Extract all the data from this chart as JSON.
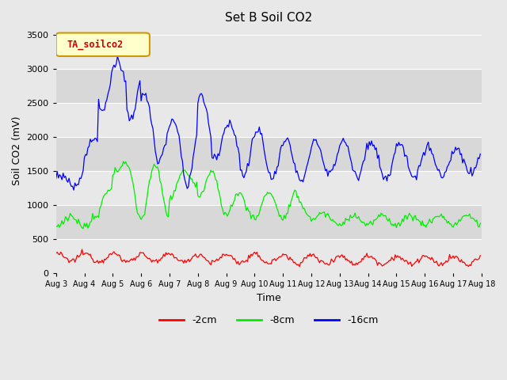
{
  "title": "Set B Soil CO2",
  "xlabel": "Time",
  "ylabel": "Soil CO2 (mV)",
  "ylim": [
    0,
    3600
  ],
  "yticks": [
    0,
    500,
    1000,
    1500,
    2000,
    2500,
    3000,
    3500
  ],
  "legend_label": "TA_soilco2",
  "series_labels": [
    "-2cm",
    "-8cm",
    "-16cm"
  ],
  "series_colors": [
    "#ff0000",
    "#00ee00",
    "#0000ff"
  ],
  "n_points": 360,
  "x_tick_labels": [
    "Aug 3",
    "Aug 4",
    "Aug 5",
    "Aug 6",
    "Aug 7",
    "Aug 8",
    "Aug 9",
    "Aug 10",
    "Aug 11",
    "Aug 12",
    "Aug 13",
    "Aug 14",
    "Aug 15",
    "Aug 16",
    "Aug 17",
    "Aug 18"
  ],
  "x_tick_positions": [
    0,
    24,
    48,
    72,
    96,
    120,
    144,
    168,
    192,
    216,
    240,
    264,
    288,
    312,
    336,
    360
  ],
  "band_colors": [
    "#e8e8e8",
    "#d8d8d8"
  ],
  "fig_bg": "#e0e0e0",
  "legend_box_color": "#ffffcc",
  "legend_box_edge": "#cc9900",
  "legend_text_color": "#cc0000"
}
